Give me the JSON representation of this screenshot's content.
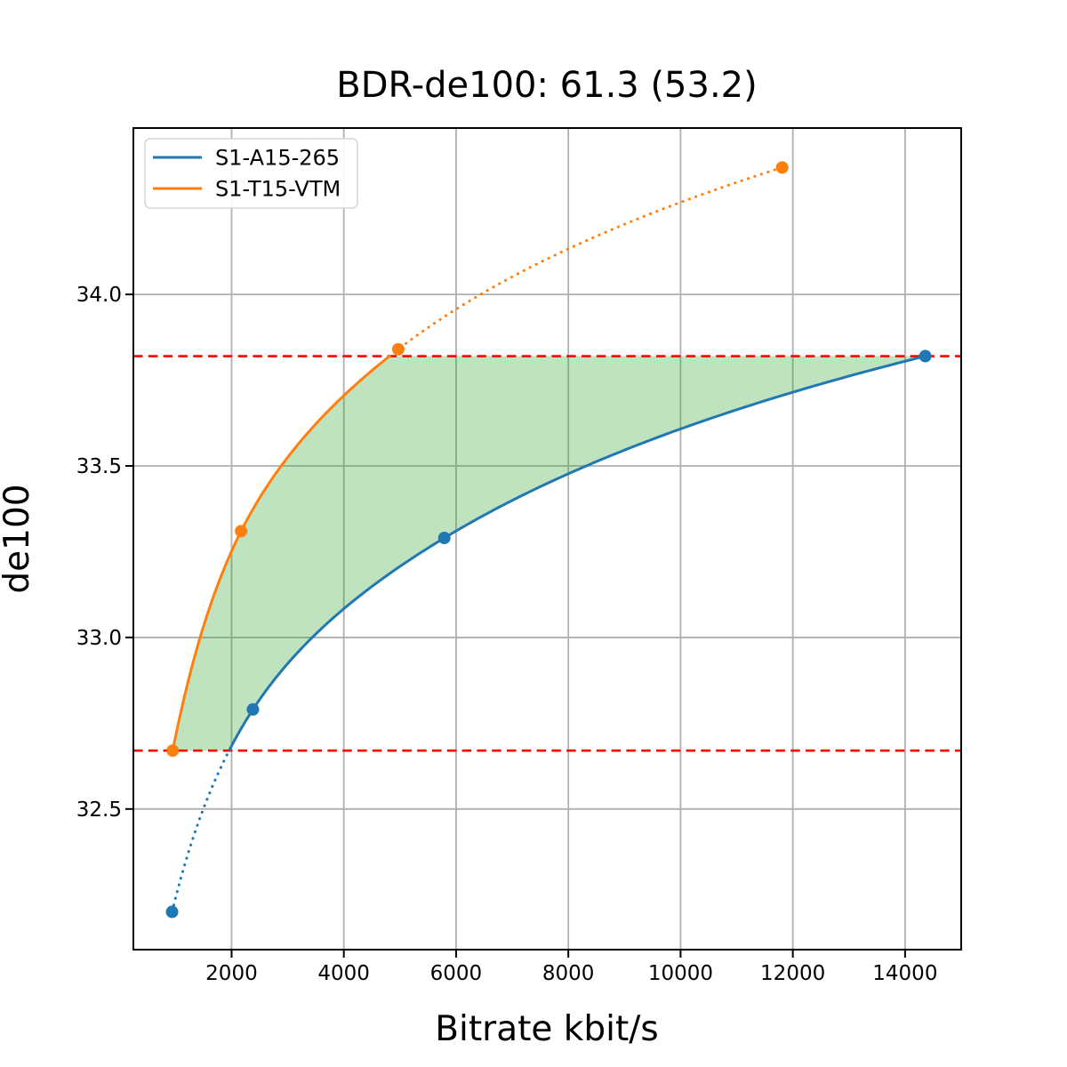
{
  "figure": {
    "background": "#ffffff"
  },
  "chart_data": {
    "type": "line",
    "title": "BDR-de100: 61.3 (53.2)",
    "xlabel": "Bitrate kbit/s",
    "ylabel": "de100",
    "xlim": [
      250,
      15000
    ],
    "ylim": [
      32.09,
      34.485
    ],
    "xticks": [
      2000,
      4000,
      6000,
      8000,
      10000,
      12000,
      14000
    ],
    "yticks": [
      32.5,
      33.0,
      33.5,
      34.0
    ],
    "grid": true,
    "grid_color": "#b0b0b0",
    "spine_color": "#000000",
    "legend": {
      "position": "upper-left",
      "entries": [
        "S1-A15-265",
        "S1-T15-VTM"
      ]
    },
    "series": [
      {
        "name": "S1-A15-265",
        "color": "#1f77b4",
        "points": [
          [
            940,
            32.2
          ],
          [
            2380,
            32.79
          ],
          [
            5790,
            33.29
          ],
          [
            14360,
            33.82
          ]
        ]
      },
      {
        "name": "S1-T15-VTM",
        "color": "#ff7f0e",
        "points": [
          [
            950,
            32.67
          ],
          [
            2170,
            33.31
          ],
          [
            4970,
            33.84
          ],
          [
            11810,
            34.37
          ]
        ]
      }
    ],
    "reference_lines": {
      "color": "#ff0000",
      "style": "dashed",
      "values": [
        32.67,
        33.82
      ]
    },
    "shaded_region": {
      "color": "#2ca02c",
      "opacity": 0.3,
      "quality_range": [
        32.67,
        33.82
      ]
    },
    "interpolation": "pchip-log-rate"
  }
}
